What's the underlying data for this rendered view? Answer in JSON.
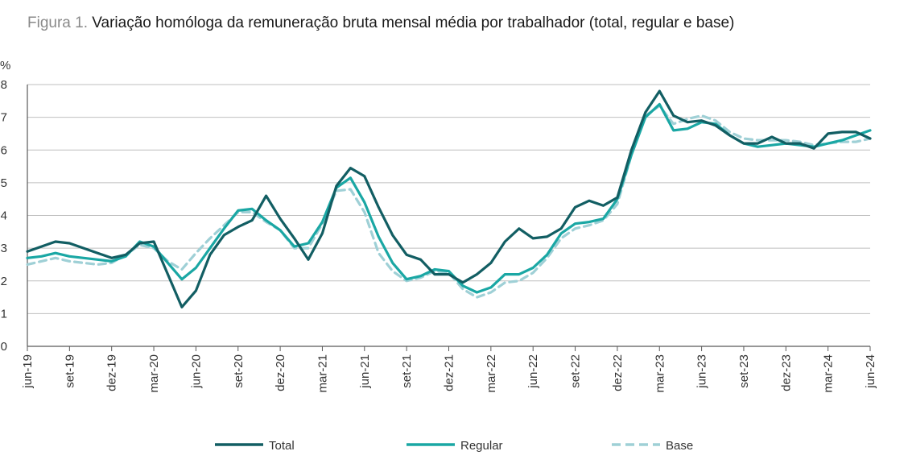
{
  "header": {
    "figure_prefix": "Figura 1.",
    "title": "Variação homóloga da remuneração bruta mensal média por trabalhador (total, regular e base)"
  },
  "chart_data": {
    "type": "line",
    "ylabel": "%",
    "ylim": [
      0,
      8
    ],
    "yticks": [
      0,
      1,
      2,
      3,
      4,
      5,
      6,
      7,
      8
    ],
    "grid": true,
    "legend_position": "bottom-center",
    "x": [
      "jun-19",
      "jul-19",
      "ago-19",
      "set-19",
      "out-19",
      "nov-19",
      "dez-19",
      "jan-20",
      "fev-20",
      "mar-20",
      "abr-20",
      "mai-20",
      "jun-20",
      "jul-20",
      "ago-20",
      "set-20",
      "out-20",
      "nov-20",
      "dez-20",
      "jan-21",
      "fev-21",
      "mar-21",
      "abr-21",
      "mai-21",
      "jun-21",
      "jul-21",
      "ago-21",
      "set-21",
      "out-21",
      "nov-21",
      "dez-21",
      "jan-22",
      "fev-22",
      "mar-22",
      "abr-22",
      "mai-22",
      "jun-22",
      "jul-22",
      "ago-22",
      "set-22",
      "out-22",
      "nov-22",
      "dez-22",
      "jan-23",
      "fev-23",
      "mar-23",
      "abr-23",
      "mai-23",
      "jun-23",
      "jul-23",
      "ago-23",
      "set-23",
      "out-23",
      "nov-23",
      "dez-23",
      "jan-24",
      "fev-24",
      "mar-24",
      "abr-24",
      "mai-24",
      "jun-24"
    ],
    "tick_labels": [
      "jun-19",
      "set-19",
      "dez-19",
      "mar-20",
      "jun-20",
      "set-20",
      "dez-20",
      "mar-21",
      "jun-21",
      "set-21",
      "dez-21",
      "mar-22",
      "jun-22",
      "set-22",
      "dez-22",
      "mar-23",
      "jun-23",
      "set-23",
      "dez-23",
      "mar-24",
      "jun-24"
    ],
    "series": [
      {
        "name": "Total",
        "color": "#125e63",
        "dash": "solid",
        "values": [
          2.9,
          3.05,
          3.2,
          3.15,
          3.0,
          2.85,
          2.7,
          2.8,
          3.15,
          3.2,
          2.2,
          1.2,
          1.7,
          2.8,
          3.4,
          3.65,
          3.85,
          4.6,
          3.9,
          3.3,
          2.65,
          3.45,
          4.9,
          5.45,
          5.2,
          4.25,
          3.4,
          2.8,
          2.65,
          2.2,
          2.2,
          1.95,
          2.2,
          2.55,
          3.2,
          3.6,
          3.3,
          3.35,
          3.6,
          4.25,
          4.45,
          4.3,
          4.55,
          6.0,
          7.15,
          7.8,
          7.05,
          6.85,
          6.9,
          6.75,
          6.45,
          6.2,
          6.2,
          6.4,
          6.2,
          6.2,
          6.05,
          6.5,
          6.55,
          6.55,
          6.35
        ]
      },
      {
        "name": "Regular",
        "color": "#1aa7a4",
        "dash": "solid",
        "values": [
          2.7,
          2.75,
          2.85,
          2.75,
          2.7,
          2.65,
          2.6,
          2.75,
          3.2,
          3.05,
          2.55,
          2.05,
          2.4,
          3.0,
          3.6,
          4.15,
          4.2,
          3.85,
          3.55,
          3.05,
          3.15,
          3.8,
          4.85,
          5.15,
          4.4,
          3.35,
          2.55,
          2.05,
          2.15,
          2.35,
          2.3,
          1.85,
          1.65,
          1.8,
          2.2,
          2.2,
          2.4,
          2.8,
          3.45,
          3.75,
          3.8,
          3.9,
          4.5,
          5.85,
          7.0,
          7.4,
          6.6,
          6.65,
          6.85,
          6.8,
          6.45,
          6.2,
          6.1,
          6.15,
          6.2,
          6.15,
          6.1,
          6.2,
          6.3,
          6.45,
          6.6
        ]
      },
      {
        "name": "Base",
        "color": "#9fd0d6",
        "dash": "dashed",
        "values": [
          2.5,
          2.6,
          2.7,
          2.6,
          2.55,
          2.5,
          2.55,
          2.8,
          3.1,
          3.0,
          2.6,
          2.35,
          2.85,
          3.3,
          3.7,
          4.1,
          4.1,
          3.8,
          3.55,
          3.0,
          3.0,
          3.75,
          4.75,
          4.8,
          4.1,
          2.85,
          2.3,
          2.0,
          2.1,
          2.3,
          2.25,
          1.75,
          1.5,
          1.65,
          1.95,
          2.0,
          2.25,
          2.7,
          3.3,
          3.6,
          3.7,
          3.85,
          4.35,
          5.85,
          7.05,
          7.35,
          6.8,
          6.95,
          7.05,
          6.9,
          6.55,
          6.35,
          6.3,
          6.3,
          6.3,
          6.25,
          6.15,
          6.2,
          6.25,
          6.25,
          6.35
        ]
      }
    ]
  }
}
